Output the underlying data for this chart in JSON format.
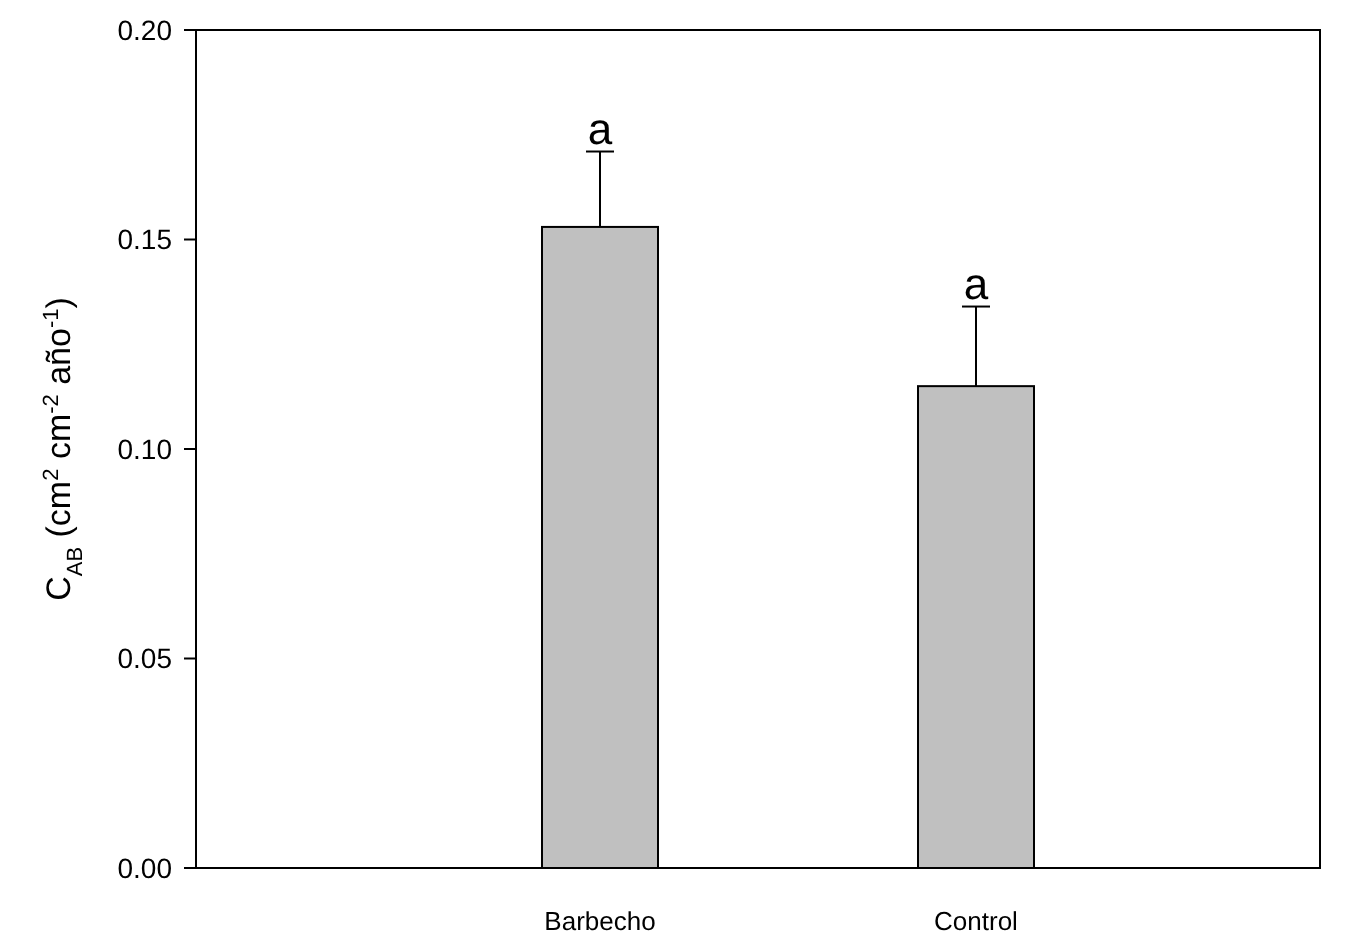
{
  "chart_data": {
    "type": "bar",
    "ylabel": "C$_{AB}$ (cm$^{2}$ cm$^{-2}$ año$^{-1}$)",
    "categories": [
      "Barbecho",
      "Control"
    ],
    "values": [
      0.153,
      0.115
    ],
    "color": "#c0c0c0",
    "errors": [
      [
        0.153,
        0.171
      ],
      [
        0.115,
        0.134
      ]
    ],
    "ylim": [
      0,
      0.2
    ],
    "yticks": [
      {
        "value": 0,
        "label": "0.00"
      },
      {
        "value": 0.05,
        "label": "0.05"
      },
      {
        "value": 0.1,
        "label": "0.10"
      },
      {
        "value": 0.15,
        "label": "0.15"
      },
      {
        "value": 0.2,
        "label": "0.20"
      }
    ],
    "annotations": [
      {
        "text": "a",
        "x": "Barbecho",
        "y": 0.171
      },
      {
        "text": "a",
        "x": "Control",
        "y": 0.134
      }
    ],
    "grid": false
  }
}
